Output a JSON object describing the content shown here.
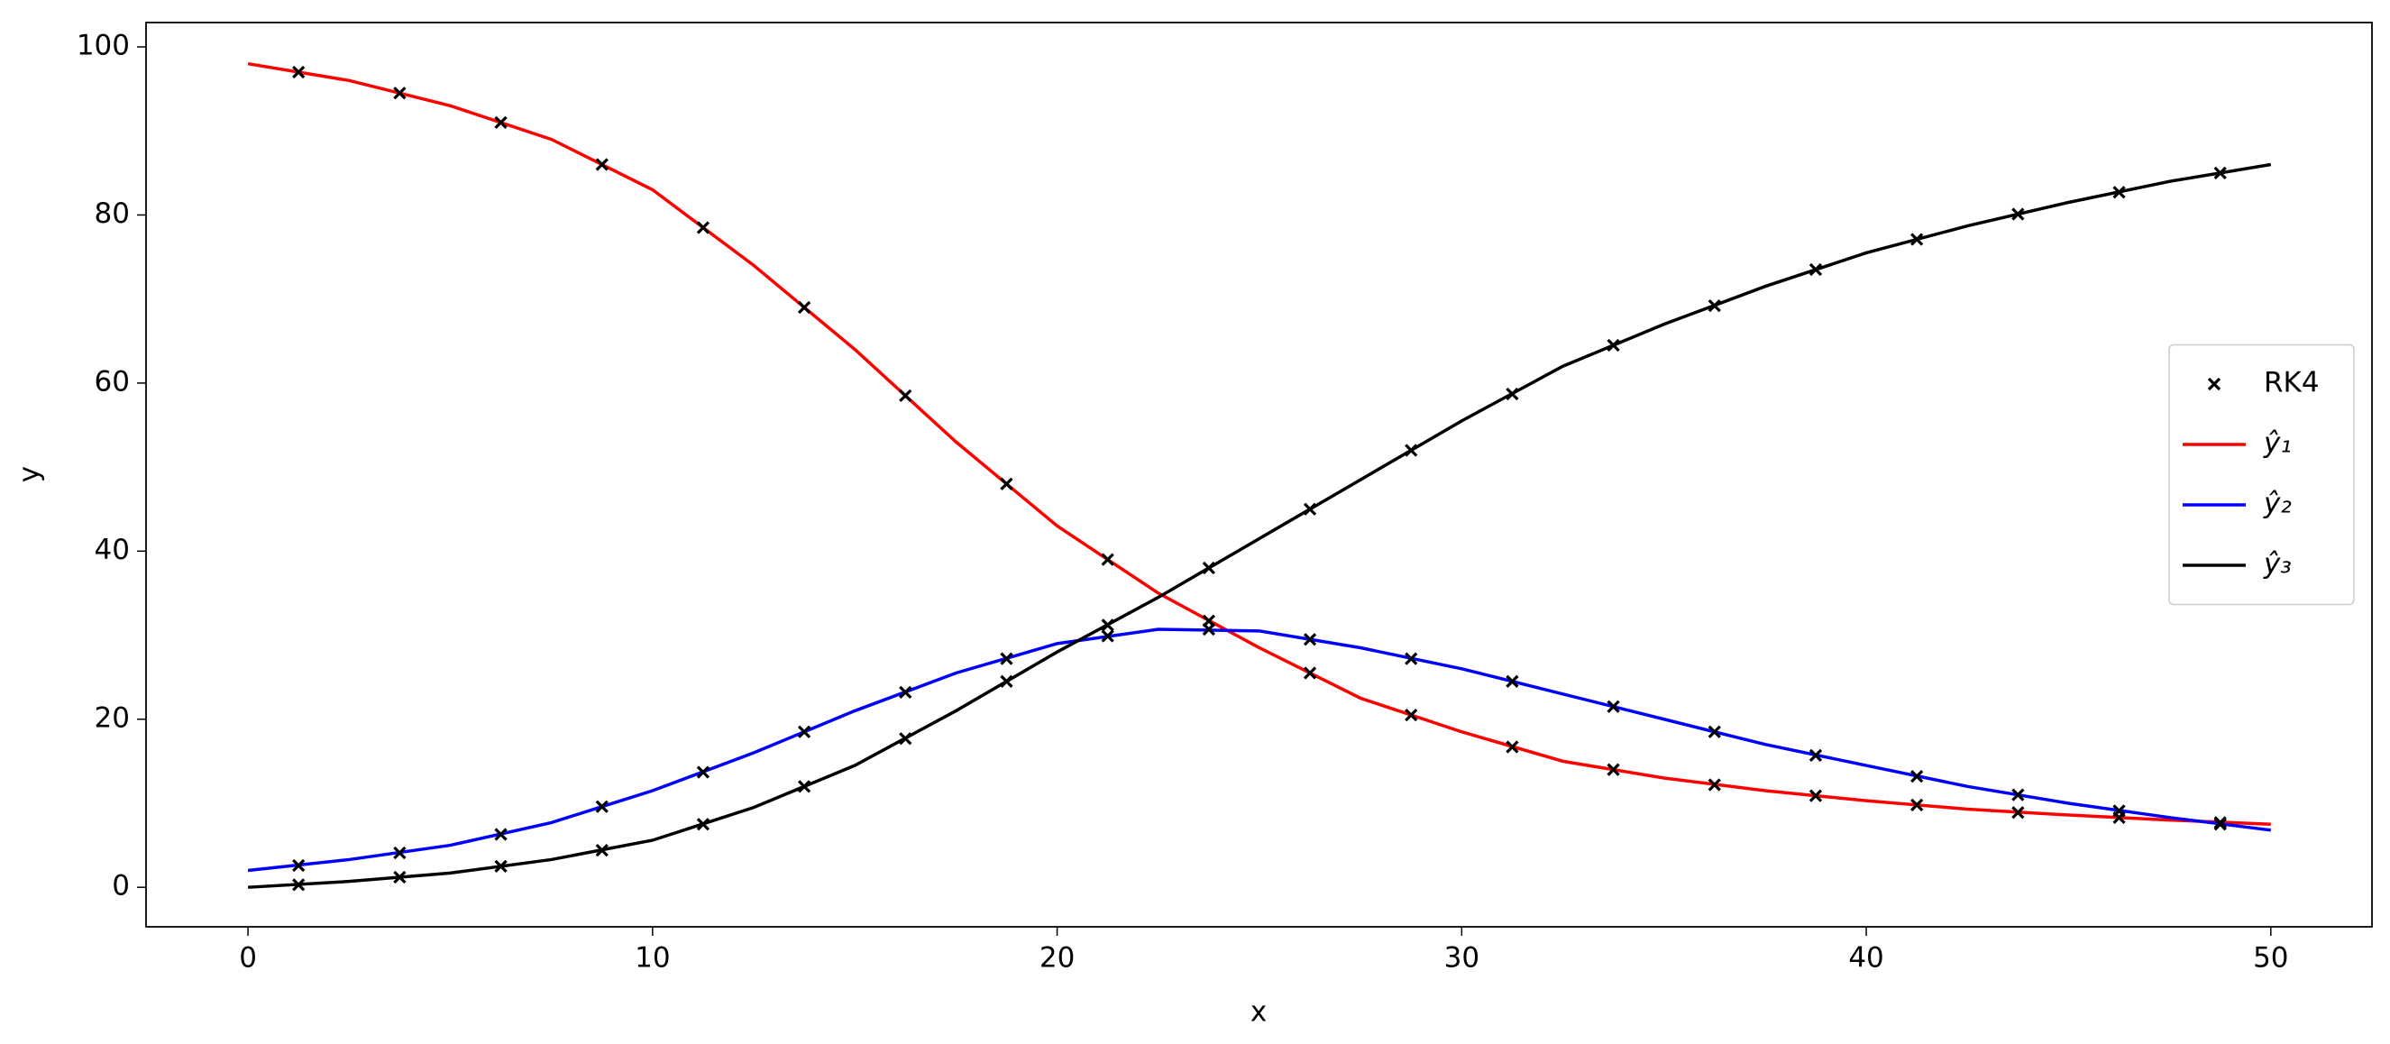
{
  "chart_data": {
    "type": "line",
    "x_label": "x",
    "y_label": "y",
    "xlim": [
      -2.52,
      52.5
    ],
    "ylim": [
      -4.7,
      102.9
    ],
    "xticks": [
      0,
      10,
      20,
      30,
      40,
      50
    ],
    "yticks": [
      0,
      20,
      40,
      60,
      80,
      100
    ],
    "legend": "center right",
    "series": [
      {
        "name": "RK4",
        "type": "scatter",
        "color": "#000000",
        "x": [
          1.25,
          3.75,
          6.25,
          8.75,
          11.25,
          13.75,
          16.25,
          18.75,
          21.25,
          23.75,
          26.25,
          28.75,
          31.25,
          33.75,
          36.25,
          38.75,
          41.25,
          43.75,
          46.25,
          48.75,
          1.25,
          3.75,
          6.25,
          8.75,
          11.25,
          13.75,
          16.25,
          18.75,
          21.25,
          23.75,
          26.25,
          28.75,
          31.25,
          33.75,
          36.25,
          38.75,
          41.25,
          43.75,
          46.25,
          48.75,
          1.25,
          3.75,
          6.25,
          8.75,
          11.25,
          13.75,
          16.25,
          18.75,
          21.25,
          23.75,
          26.25,
          28.75,
          31.25,
          33.75,
          36.25,
          38.75,
          41.25,
          43.75,
          46.25,
          48.75
        ],
        "values": [
          97,
          94.5,
          91,
          86,
          78.5,
          69,
          58.5,
          48,
          39,
          31.7,
          25.5,
          20.5,
          16.7,
          14,
          12.2,
          10.9,
          9.8,
          8.9,
          8.3,
          7.7,
          2.6,
          4.1,
          6.3,
          9.6,
          13.7,
          18.5,
          23.2,
          27.2,
          29.9,
          30.7,
          29.5,
          27.2,
          24.5,
          21.5,
          18.5,
          15.7,
          13.2,
          11,
          9.1,
          7.5,
          0.3,
          1.2,
          2.5,
          4.4,
          7.5,
          12,
          17.7,
          24.5,
          31.2,
          38,
          45,
          52,
          58.7,
          64.5,
          69.2,
          73.5,
          77.1,
          80.1,
          82.7,
          85
        ]
      },
      {
        "name": "ŷ₁",
        "type": "line",
        "color": "#ff0000",
        "x": [
          0,
          2.5,
          5,
          7.5,
          10,
          12.5,
          15,
          17.5,
          20,
          22.5,
          25,
          27.5,
          30,
          32.5,
          35,
          37.5,
          40,
          42.5,
          45,
          47.5,
          50
        ],
        "values": [
          98,
          96,
          93,
          89,
          83,
          74,
          64,
          53,
          43,
          35,
          28.5,
          22.5,
          18.5,
          15,
          13,
          11.5,
          10.3,
          9.3,
          8.6,
          8,
          7.5
        ]
      },
      {
        "name": "ŷ₂",
        "type": "line",
        "color": "#0000ff",
        "x": [
          0,
          2.5,
          5,
          7.5,
          10,
          12.5,
          15,
          17.5,
          20,
          22.5,
          25,
          27.5,
          30,
          32.5,
          35,
          37.5,
          40,
          42.5,
          45,
          47.5,
          50
        ],
        "values": [
          2,
          3.3,
          5,
          7.7,
          11.5,
          16,
          21,
          25.5,
          29,
          30.7,
          30.5,
          28.5,
          26,
          23,
          20,
          17,
          14.5,
          12,
          10,
          8.3,
          6.8
        ]
      },
      {
        "name": "ŷ₃",
        "type": "line",
        "color": "#000000",
        "x": [
          0,
          2.5,
          5,
          7.5,
          10,
          12.5,
          15,
          17.5,
          20,
          22.5,
          25,
          27.5,
          30,
          32.5,
          35,
          37.5,
          40,
          42.5,
          45,
          47.5,
          50
        ],
        "values": [
          0,
          0.7,
          1.7,
          3.3,
          5.6,
          9.5,
          14.5,
          21,
          28,
          34.5,
          41.5,
          48.5,
          55.5,
          62,
          67,
          71.5,
          75.5,
          78.7,
          81.5,
          84,
          86
        ]
      }
    ]
  }
}
